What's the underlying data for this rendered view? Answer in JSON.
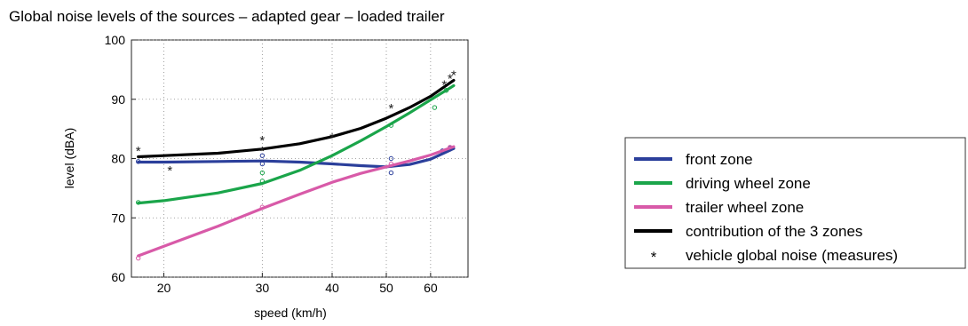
{
  "chart_data": {
    "type": "line",
    "title": "Global noise levels of the sources – adapted gear – loaded trailer",
    "xlabel": "speed (km/h)",
    "ylabel": "level (dBA)",
    "x_scale": "log",
    "xlim": [
      17.5,
      70
    ],
    "ylim": [
      60,
      100
    ],
    "xticks": [
      20,
      30,
      40,
      50,
      60
    ],
    "yticks": [
      60,
      70,
      80,
      90,
      100
    ],
    "grid": true,
    "legend_position": "right",
    "series": [
      {
        "name": "front zone",
        "color": "#2b3f9b",
        "x": [
          18,
          20,
          25,
          30,
          35,
          40,
          45,
          50,
          55,
          60,
          66
        ],
        "y": [
          79.4,
          79.4,
          79.5,
          79.6,
          79.4,
          79.1,
          78.8,
          78.6,
          79.0,
          79.9,
          81.7
        ]
      },
      {
        "name": "driving wheel zone",
        "color": "#1aa54a",
        "x": [
          18,
          20,
          25,
          30,
          35,
          40,
          45,
          50,
          55,
          60,
          66
        ],
        "y": [
          72.5,
          72.9,
          74.2,
          75.8,
          78.0,
          80.5,
          83.0,
          85.4,
          87.7,
          89.9,
          92.3
        ]
      },
      {
        "name": "trailer wheel zone",
        "color": "#d85aa8",
        "x": [
          18,
          20,
          25,
          30,
          35,
          40,
          45,
          50,
          55,
          60,
          66
        ],
        "y": [
          63.6,
          65.2,
          68.6,
          71.6,
          74.0,
          76.0,
          77.5,
          78.6,
          79.6,
          80.6,
          82.0
        ]
      },
      {
        "name": "contribution of the 3 zones",
        "color": "#000000",
        "x": [
          18,
          20,
          25,
          30,
          35,
          40,
          45,
          50,
          55,
          60,
          66
        ],
        "y": [
          80.3,
          80.5,
          80.9,
          81.6,
          82.5,
          83.7,
          85.1,
          86.8,
          88.6,
          90.5,
          93.2
        ]
      }
    ],
    "measures": {
      "name": "vehicle global noise (measures)",
      "marker": "*",
      "x": [
        18,
        20.5,
        30,
        30,
        40,
        51,
        63.5,
        65,
        66
      ],
      "y": [
        81.4,
        78.1,
        83.2,
        81.4,
        83.7,
        88.6,
        92.6,
        93.6,
        94.2
      ]
    },
    "scatter_points": [
      {
        "color": "#2b3f9b",
        "x": [
          18,
          30,
          30,
          51,
          51,
          63,
          65
        ],
        "y": [
          79.5,
          80.5,
          79.1,
          80.0,
          77.6,
          81.3,
          81.8
        ]
      },
      {
        "color": "#1aa54a",
        "x": [
          18,
          30,
          30,
          51,
          61,
          64
        ],
        "y": [
          72.6,
          77.6,
          76.2,
          85.6,
          88.6,
          91.5
        ]
      },
      {
        "color": "#d85aa8",
        "x": [
          18,
          30,
          51,
          65
        ],
        "y": [
          63.2,
          71.8,
          79.1,
          81.9
        ]
      }
    ]
  }
}
